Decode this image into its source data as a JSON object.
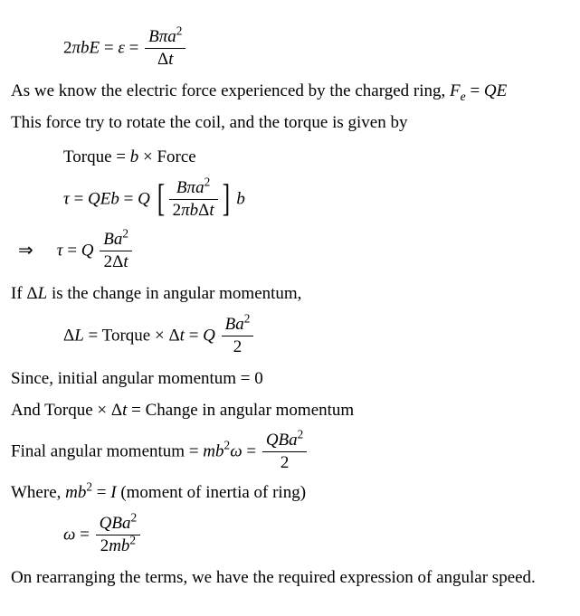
{
  "eq1": {
    "lhs_a": "2",
    "lhs_b": "π",
    "lhs_c": "bE",
    "eq": "=",
    "eps": "ε",
    "num_a": "B",
    "num_b": "π",
    "num_c": "a",
    "num_exp": "2",
    "den_a": "Δ",
    "den_b": "t"
  },
  "p1_a": "As we know the electric force experienced by the charged ring, ",
  "p1_F": "F",
  "p1_sub": "e",
  "p1_b": " = ",
  "p1_QE": "QE",
  "p2": "This force try to rotate the coil, and the torque is given by",
  "torque_line_a": "Torque = ",
  "torque_line_b": "b",
  "torque_line_c": " × Force",
  "eq2": {
    "tau": "τ",
    "eq": " = ",
    "QEb": "QEb",
    "Q": "Q",
    "num_a": "B",
    "num_b": "π",
    "num_c": "a",
    "num_exp": "2",
    "den_a": "2",
    "den_b": "π",
    "den_c": "b",
    "den_d": "Δ",
    "den_e": "t",
    "trail": "b"
  },
  "arrow": "⇒",
  "eq3": {
    "tau": "τ",
    "eq": " = ",
    "Q": "Q",
    "num_a": "Ba",
    "num_exp": "2",
    "den_a": "2Δ",
    "den_b": "t"
  },
  "p3_a": "If Δ",
  "p3_b": "L",
  "p3_c": " is the change in angular momentum,",
  "eq4": {
    "dL_a": "Δ",
    "dL_b": "L",
    "eq": " = Torque × ",
    "dt_a": "Δ",
    "dt_b": "t",
    "eq2": " = ",
    "Q": "Q",
    "num_a": "Ba",
    "num_exp": "2",
    "den": "2"
  },
  "p4": "Since, initial angular momentum = 0",
  "p5_a": "And Torque × Δ",
  "p5_b": "t",
  "p5_c": " = Change in angular momentum",
  "p6_a": "Final angular momentum ",
  "eq5": {
    "eq": " = ",
    "mb": "mb",
    "exp": "2",
    "omega": "ω",
    "Q": "QBa",
    "num_exp": "2",
    "den": "2"
  },
  "p7_a": "Where, ",
  "p7_mb": "mb",
  "p7_exp": "2",
  "p7_b": " = ",
  "p7_I": "I",
  "p7_c": " (moment of inertia of ring)",
  "eq6": {
    "omega": "ω",
    "eq": " = ",
    "num_a": "QBa",
    "num_exp": "2",
    "den_a": "2",
    "den_b": "mb",
    "den_exp": "2"
  },
  "p8": "On rearranging the terms, we have the required expression of angular speed."
}
